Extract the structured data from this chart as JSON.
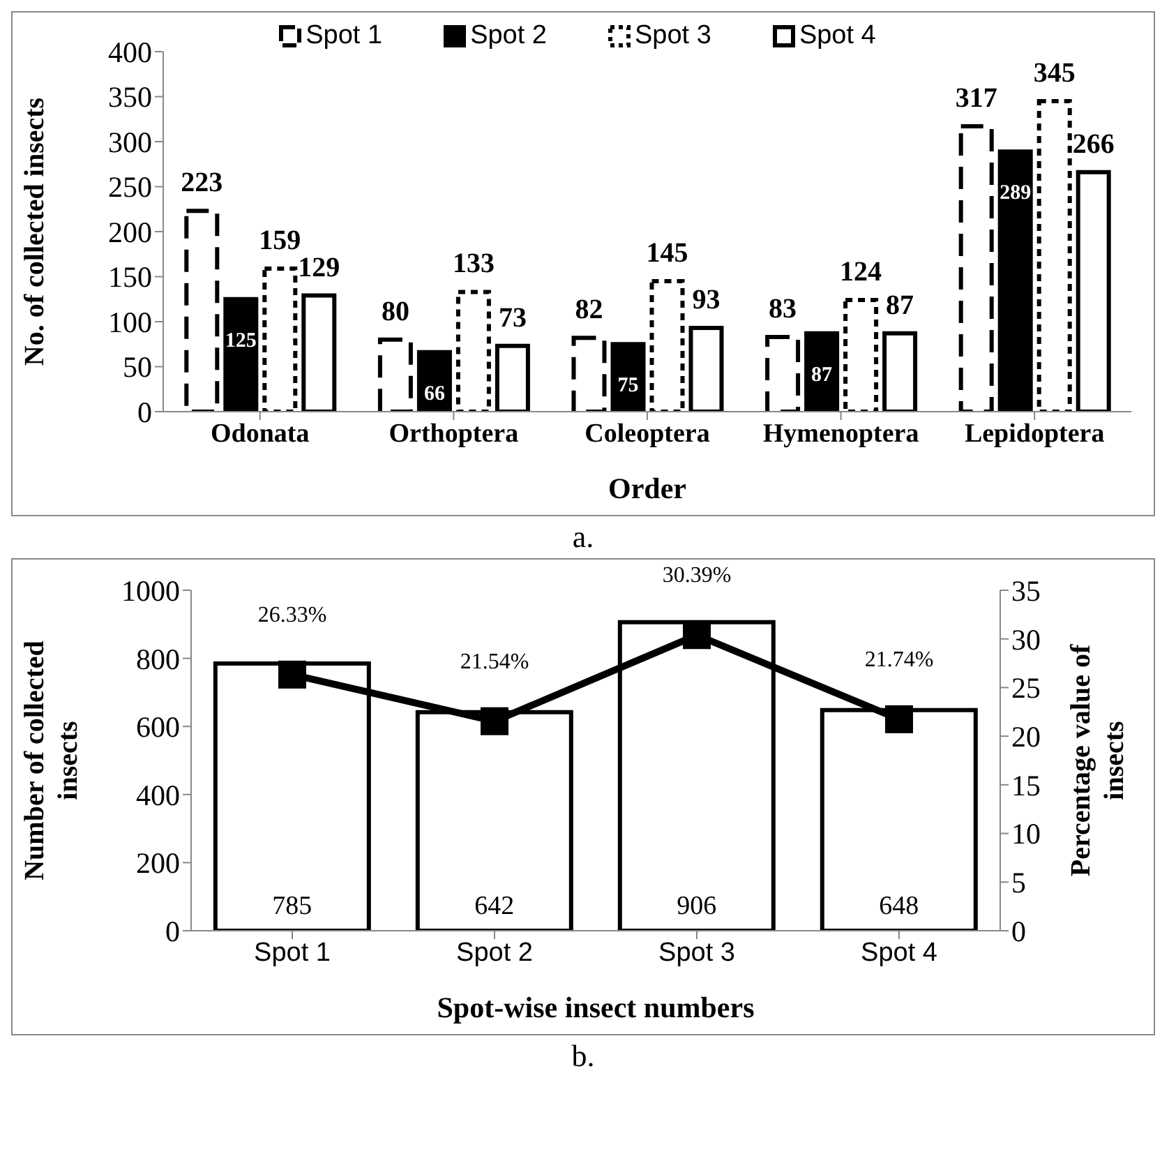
{
  "chart_data": [
    {
      "type": "bar",
      "categories": [
        "Odonata",
        "Orthoptera",
        "Coleoptera",
        "Hymenoptera",
        "Lepidoptera"
      ],
      "series": [
        {
          "name": "Spot 1",
          "color": "#ffffff",
          "line_style": "dashed",
          "values": [
            223,
            80,
            82,
            83,
            317
          ]
        },
        {
          "name": "Spot 2",
          "color": "#000000",
          "values": [
            125,
            66,
            75,
            87,
            289
          ]
        },
        {
          "name": "Spot 3",
          "color": "#ffffff",
          "line_style": "dotted",
          "values": [
            159,
            133,
            145,
            124,
            345
          ]
        },
        {
          "name": "Spot 4",
          "color": "#ffffff",
          "values": [
            129,
            73,
            93,
            87,
            266
          ]
        }
      ],
      "xlabel": "Order",
      "ylabel": "No. of collected insects",
      "ylim": [
        0,
        400
      ],
      "yticks": [
        0,
        50,
        100,
        150,
        200,
        250,
        300,
        350,
        400
      ],
      "data_labels": true,
      "legend": "top",
      "grid": false,
      "annotations": [
        "a."
      ]
    },
    {
      "type": "bar",
      "categories": [
        "Spot 1",
        "Spot 2",
        "Spot 3",
        "Spot 4"
      ],
      "series": [
        {
          "color": "#ffffff",
          "values": [
            785,
            642,
            906,
            648
          ],
          "value_labels": [
            "785",
            "642",
            "906",
            "648"
          ]
        },
        {
          "type": "line",
          "axis": "y2",
          "color": "#000000",
          "marker": "square",
          "values": [
            26.33,
            21.54,
            30.39,
            21.74
          ],
          "value_labels": [
            "26.33%",
            "21.54%",
            "30.39%",
            "21.74%"
          ]
        }
      ],
      "xlabel": "Spot-wise insect numbers",
      "ylabel": "Number  of collected insects",
      "y2label": "Percentage value of insects",
      "ylim": [
        0,
        1000
      ],
      "yticks": [
        0,
        200,
        400,
        600,
        800,
        1000
      ],
      "y2lim": [
        0,
        35
      ],
      "y2ticks": [
        0,
        5,
        10,
        15,
        20,
        25,
        30,
        35
      ],
      "grid": false,
      "legend": false,
      "annotations": [
        "b."
      ]
    }
  ]
}
